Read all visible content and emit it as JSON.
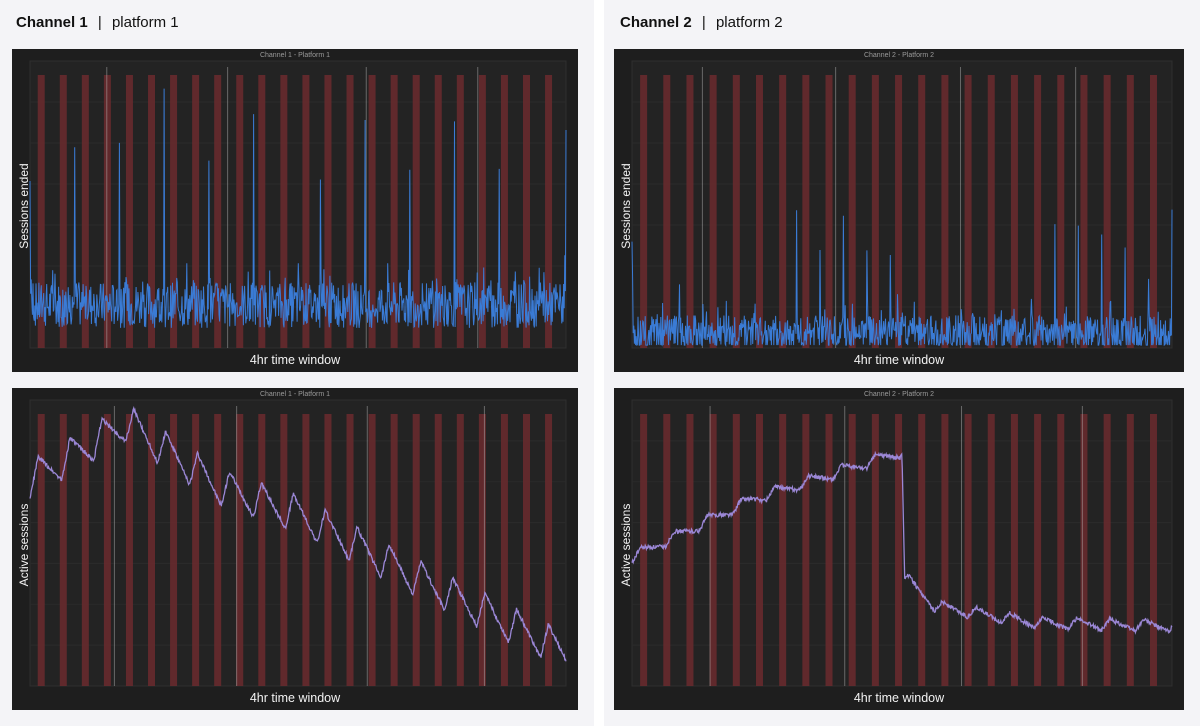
{
  "panels": [
    {
      "channel": "Channel 1",
      "separator": "|",
      "platform": "platform 1"
    },
    {
      "channel": "Channel 2",
      "separator": "|",
      "platform": "platform 2"
    }
  ],
  "colors": {
    "background": "#1e1e1e",
    "event_band": "#6b2a2e",
    "sessions_ended_line": "#3a7bd5",
    "active_sessions_line": "#9b87d6",
    "separator_line": "#bdbdbd"
  },
  "chart_data": [
    {
      "type": "line",
      "title": "Channel 1 - Platform 1",
      "xlabel": "4hr time window",
      "ylabel": "Sessions ended",
      "grid": true,
      "y_tick_labels": false,
      "event_bands": 24,
      "series": [
        {
          "color": "#3a7bd5",
          "baseline": 0.15,
          "noise": 0.1,
          "spike_height": 0.72,
          "spike_period": 24
        }
      ]
    },
    {
      "type": "line",
      "title": "Channel 2 - Platform 2",
      "xlabel": "4hr time window",
      "ylabel": "Sessions ended",
      "grid": true,
      "y_tick_labels": false,
      "event_bands": 23,
      "series": [
        {
          "color": "#3a7bd5",
          "baseline": 0.05,
          "noise": 0.08,
          "spike_height": 0.42,
          "spike_period": 23
        }
      ]
    },
    {
      "type": "line",
      "title": "Channel 1 - Platform 1",
      "xlabel": "4hr time window",
      "ylabel": "Active sessions",
      "grid": true,
      "y_tick_labels": false,
      "event_bands": 24,
      "series": [
        {
          "color": "#9b87d6",
          "trend": [
            [
              0,
              0.72
            ],
            [
              0.18,
              0.92
            ],
            [
              0.35,
              0.7
            ],
            [
              0.5,
              0.6
            ],
            [
              0.75,
              0.35
            ],
            [
              1,
              0.12
            ]
          ],
          "sawtooth_amplitude": 0.13
        }
      ]
    },
    {
      "type": "line",
      "title": "Channel 2 - Platform 2",
      "xlabel": "4hr time window",
      "ylabel": "Active sessions",
      "grid": true,
      "y_tick_labels": false,
      "event_bands": 23,
      "series": [
        {
          "color": "#9b87d6",
          "trend": [
            [
              0,
              0.45
            ],
            [
              0.22,
              0.65
            ],
            [
              0.5,
              0.82
            ],
            [
              0.505,
              0.38
            ],
            [
              0.56,
              0.28
            ],
            [
              0.75,
              0.22
            ],
            [
              1,
              0.21
            ]
          ],
          "sawtooth_amplitude": 0.04
        }
      ]
    }
  ]
}
